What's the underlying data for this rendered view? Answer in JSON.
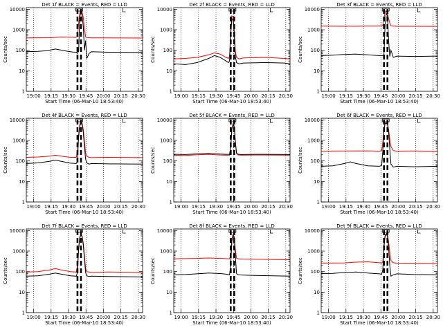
{
  "chart_data": [
    {
      "type": "line",
      "title": "Det 1f BLACK = Events, RED = LLD",
      "xlabel": "Start Time (06-Mar-10 18:53:40)",
      "ylabel": "Counts/sec",
      "xticks": [
        "19:00",
        "19:15",
        "19:30",
        "19:45",
        "20:00",
        "20:15",
        "20:30"
      ],
      "yticks": [
        "1",
        "10",
        "100",
        "1000",
        "10000"
      ],
      "xlim_minutes": [
        0,
        100
      ],
      "ylim": [
        1,
        12000
      ],
      "yscale": "log",
      "grid": "vertical dotted lines at ticks",
      "series": [
        {
          "color": "#ff0000",
          "x": [
            0,
            20,
            30,
            40,
            42,
            44,
            45,
            46,
            47,
            48,
            49,
            50,
            51,
            52,
            54,
            56,
            70,
            100
          ],
          "y": [
            400,
            410,
            440,
            430,
            420,
            460,
            2000,
            6500,
            8500,
            7500,
            4000,
            1100,
            450,
            420,
            410,
            405,
            400,
            395
          ]
        },
        {
          "color": "#000000",
          "x": [
            0,
            10,
            18,
            25,
            35,
            40,
            43,
            44,
            45,
            46,
            47,
            48,
            49,
            50,
            51,
            52,
            54,
            56,
            70,
            100
          ],
          "y": [
            85,
            88,
            95,
            115,
            90,
            82,
            80,
            70,
            90,
            4500,
            7000,
            5000,
            1500,
            100,
            300,
            40,
            70,
            85,
            80,
            78
          ]
        }
      ]
    },
    {
      "type": "line",
      "title": "Det 2f BLACK = Events, RED = LLD",
      "xlabel": "Start Time (06-Mar-10 18:53:40)",
      "ylabel": "Counts/sec",
      "xticks": [
        "19:00",
        "19:15",
        "19:30",
        "19:45",
        "20:00",
        "20:15",
        "20:30"
      ],
      "yticks": [
        "1",
        "10",
        "100",
        "1000",
        "10000"
      ],
      "xlim_minutes": [
        0,
        100
      ],
      "ylim": [
        1,
        12000
      ],
      "yscale": "log",
      "grid": "vertical dotted lines at ticks",
      "series": [
        {
          "color": "#ff0000",
          "x": [
            0,
            10,
            20,
            30,
            35,
            40,
            45,
            47,
            48,
            49,
            50,
            51,
            52,
            53,
            54,
            56,
            58,
            60,
            80,
            95,
            100
          ],
          "y": [
            38,
            40,
            45,
            60,
            75,
            65,
            45,
            40,
            50,
            900,
            4800,
            4200,
            1000,
            90,
            45,
            38,
            40,
            42,
            45,
            40,
            38
          ]
        },
        {
          "color": "#000000",
          "x": [
            0,
            10,
            20,
            30,
            35,
            40,
            45,
            47,
            48,
            49,
            50,
            51,
            52,
            53,
            54,
            56,
            60,
            80,
            95,
            100
          ],
          "y": [
            22,
            20,
            25,
            40,
            55,
            45,
            30,
            25,
            30,
            600,
            3500,
            3000,
            600,
            50,
            25,
            22,
            24,
            25,
            24,
            22
          ]
        }
      ]
    },
    {
      "type": "line",
      "title": "Det 3f BLACK = Events, RED = LLD",
      "xlabel": "Start Time (06-Mar-10 18:53:40)",
      "ylabel": "Counts/sec",
      "xticks": [
        "19:00",
        "19:15",
        "19:30",
        "19:45",
        "20:00",
        "20:15",
        "20:30"
      ],
      "yticks": [
        "1",
        "10",
        "100",
        "1000",
        "10000"
      ],
      "xlim_minutes": [
        0,
        100
      ],
      "ylim": [
        1,
        12000
      ],
      "yscale": "log",
      "grid": "vertical dotted lines at ticks",
      "series": [
        {
          "color": "#ff0000",
          "x": [
            0,
            20,
            40,
            50,
            53,
            54,
            55,
            56,
            57,
            58,
            59,
            60,
            62,
            65,
            80,
            100
          ],
          "y": [
            1500,
            1480,
            1500,
            1500,
            1600,
            3500,
            7000,
            8000,
            6000,
            3500,
            2200,
            1600,
            1500,
            1480,
            1470,
            1460
          ]
        },
        {
          "color": "#000000",
          "x": [
            0,
            10,
            20,
            30,
            40,
            50,
            53,
            54,
            55,
            56,
            57,
            58,
            59,
            60,
            62,
            65,
            80,
            100
          ],
          "y": [
            55,
            58,
            62,
            65,
            60,
            55,
            55,
            60,
            2000,
            6000,
            5000,
            300,
            50,
            100,
            45,
            52,
            50,
            52
          ]
        }
      ]
    },
    {
      "type": "line",
      "title": "Det 4f BLACK = Events, RED = LLD",
      "xlabel": "Start Time (06-Mar-10 18:53:40)",
      "ylabel": "Counts/sec",
      "xticks": [
        "19:00",
        "19:15",
        "19:30",
        "19:45",
        "20:00",
        "20:15",
        "20:30"
      ],
      "yticks": [
        "1",
        "10",
        "100",
        "1000",
        "10000"
      ],
      "xlim_minutes": [
        0,
        100
      ],
      "ylim": [
        1,
        12000
      ],
      "yscale": "log",
      "grid": "vertical dotted lines at ticks",
      "series": [
        {
          "color": "#ff0000",
          "x": [
            0,
            10,
            20,
            25,
            30,
            38,
            43,
            44,
            45,
            46,
            47,
            48,
            49,
            50,
            51,
            52,
            54,
            56,
            70,
            100
          ],
          "y": [
            150,
            155,
            170,
            190,
            170,
            150,
            150,
            300,
            2000,
            6000,
            8000,
            7000,
            3500,
            900,
            250,
            170,
            150,
            145,
            150,
            145
          ]
        },
        {
          "color": "#000000",
          "x": [
            0,
            10,
            20,
            25,
            30,
            38,
            43,
            44,
            45,
            46,
            47,
            48,
            49,
            50,
            51,
            52,
            54,
            56,
            70,
            100
          ],
          "y": [
            75,
            80,
            95,
            110,
            95,
            78,
            75,
            100,
            1500,
            5000,
            7000,
            6000,
            2500,
            500,
            120,
            80,
            70,
            75,
            72,
            70
          ]
        }
      ]
    },
    {
      "type": "line",
      "title": "Det 5f BLACK = Events, RED = LLD",
      "xlabel": "Start Time (06-Mar-10 18:53:40)",
      "ylabel": "Counts/sec",
      "xticks": [
        "19:00",
        "19:15",
        "19:30",
        "19:45",
        "20:00",
        "20:15",
        "20:30"
      ],
      "yticks": [
        "1",
        "10",
        "100",
        "1000",
        "10000"
      ],
      "xlim_minutes": [
        0,
        100
      ],
      "ylim": [
        1,
        12000
      ],
      "yscale": "log",
      "grid": "vertical dotted lines at ticks",
      "series": [
        {
          "color": "#ff0000",
          "x": [
            0,
            10,
            20,
            30,
            40,
            45,
            48,
            49,
            50,
            51,
            52,
            53,
            54,
            55,
            56,
            58,
            70,
            100
          ],
          "y": [
            190,
            185,
            200,
            210,
            195,
            190,
            190,
            500,
            4000,
            6500,
            5000,
            1000,
            250,
            200,
            195,
            190,
            195,
            190
          ]
        },
        {
          "color": "#000000",
          "x": [
            0,
            10,
            20,
            30,
            40,
            45,
            48,
            49,
            50,
            51,
            52,
            53,
            54,
            55,
            56,
            58,
            70,
            100
          ],
          "y": [
            210,
            205,
            220,
            230,
            215,
            210,
            210,
            450,
            3500,
            6000,
            4500,
            800,
            230,
            215,
            210,
            205,
            210,
            205
          ]
        }
      ]
    },
    {
      "type": "line",
      "title": "Det 6f BLACK = Events, RED = LLD",
      "xlabel": "Start Time (06-Mar-10 18:53:40)",
      "ylabel": "Counts/sec",
      "xticks": [
        "19:00",
        "19:15",
        "19:30",
        "19:45",
        "20:00",
        "20:15",
        "20:30"
      ],
      "yticks": [
        "1",
        "10",
        "100",
        "1000",
        "10000"
      ],
      "xlim_minutes": [
        0,
        100
      ],
      "ylim": [
        1,
        12000
      ],
      "yscale": "log",
      "grid": "vertical dotted lines at ticks",
      "series": [
        {
          "color": "#ff0000",
          "x": [
            0,
            20,
            40,
            50,
            52,
            53,
            54,
            55,
            56,
            57,
            58,
            59,
            60,
            62,
            65,
            80,
            100
          ],
          "y": [
            300,
            305,
            310,
            300,
            320,
            800,
            4000,
            7000,
            8000,
            7000,
            3500,
            1200,
            500,
            320,
            300,
            305,
            295
          ]
        },
        {
          "color": "#000000",
          "x": [
            0,
            10,
            20,
            25,
            30,
            40,
            50,
            52,
            53,
            54,
            55,
            56,
            57,
            58,
            59,
            60,
            62,
            65,
            80,
            100
          ],
          "y": [
            55,
            58,
            75,
            90,
            75,
            58,
            55,
            60,
            300,
            3500,
            6500,
            7000,
            6000,
            2500,
            400,
            70,
            50,
            55,
            52,
            55
          ]
        }
      ]
    },
    {
      "type": "line",
      "title": "Det 7f BLACK = Events, RED = LLD",
      "xlabel": "Start Time (06-Mar-10 18:53:40)",
      "ylabel": "Counts/sec",
      "xticks": [
        "19:00",
        "19:15",
        "19:30",
        "19:45",
        "20:00",
        "20:15",
        "20:30"
      ],
      "yticks": [
        "1",
        "10",
        "100",
        "1000",
        "10000"
      ],
      "xlim_minutes": [
        0,
        100
      ],
      "ylim": [
        1,
        12000
      ],
      "yscale": "log",
      "grid": "vertical dotted lines at ticks",
      "series": [
        {
          "color": "#ff0000",
          "x": [
            0,
            10,
            20,
            25,
            30,
            38,
            43,
            44,
            45,
            46,
            47,
            48,
            49,
            50,
            51,
            52,
            54,
            56,
            70,
            100
          ],
          "y": [
            95,
            100,
            120,
            140,
            120,
            100,
            95,
            200,
            1500,
            5000,
            6500,
            5500,
            2500,
            600,
            140,
            100,
            95,
            90,
            95,
            90
          ]
        },
        {
          "color": "#000000",
          "x": [
            0,
            10,
            20,
            25,
            30,
            38,
            43,
            44,
            45,
            46,
            47,
            48,
            49,
            50,
            51,
            52,
            54,
            56,
            70,
            100
          ],
          "y": [
            60,
            62,
            75,
            85,
            75,
            62,
            60,
            90,
            1200,
            4500,
            6000,
            5000,
            2000,
            400,
            90,
            62,
            58,
            60,
            58,
            55
          ]
        }
      ]
    },
    {
      "type": "line",
      "title": "Det 8f BLACK = Events, RED = LLD",
      "xlabel": "Start Time (06-Mar-10 18:53:40)",
      "ylabel": "Counts/sec",
      "xticks": [
        "19:00",
        "19:15",
        "19:30",
        "19:45",
        "20:00",
        "20:15",
        "20:30"
      ],
      "yticks": [
        "1",
        "10",
        "100",
        "1000",
        "10000"
      ],
      "xlim_minutes": [
        0,
        100
      ],
      "ylim": [
        1,
        12000
      ],
      "yscale": "log",
      "grid": "vertical dotted lines at ticks",
      "series": [
        {
          "color": "#ff0000",
          "x": [
            0,
            10,
            20,
            30,
            40,
            45,
            48,
            49,
            50,
            51,
            52,
            53,
            54,
            55,
            56,
            58,
            70,
            100
          ],
          "y": [
            420,
            430,
            440,
            460,
            440,
            430,
            420,
            700,
            4000,
            6500,
            5000,
            1200,
            450,
            430,
            420,
            410,
            400,
            380
          ]
        },
        {
          "color": "#000000",
          "x": [
            0,
            10,
            20,
            30,
            40,
            45,
            48,
            49,
            50,
            51,
            52,
            53,
            54,
            55,
            56,
            58,
            70,
            100
          ],
          "y": [
            70,
            72,
            78,
            85,
            80,
            75,
            70,
            200,
            3000,
            6000,
            4500,
            600,
            80,
            72,
            70,
            68,
            65,
            60
          ]
        }
      ]
    },
    {
      "type": "line",
      "title": "Det 9f BLACK = Events, RED = LLD",
      "xlabel": "Start Time (06-Mar-10 18:53:40)",
      "ylabel": "Counts/sec",
      "xticks": [
        "19:00",
        "19:15",
        "19:30",
        "19:45",
        "20:00",
        "20:15",
        "20:30"
      ],
      "yticks": [
        "1",
        "10",
        "100",
        "1000",
        "10000"
      ],
      "xlim_minutes": [
        0,
        100
      ],
      "ylim": [
        1,
        12000
      ],
      "yscale": "log",
      "grid": "vertical dotted lines at ticks",
      "series": [
        {
          "color": "#ff0000",
          "x": [
            0,
            20,
            30,
            40,
            50,
            52,
            53,
            54,
            55,
            56,
            57,
            58,
            59,
            60,
            62,
            65,
            80,
            100
          ],
          "y": [
            260,
            265,
            290,
            300,
            270,
            260,
            300,
            1500,
            5000,
            7000,
            6000,
            3000,
            900,
            350,
            270,
            260,
            255,
            250
          ]
        },
        {
          "color": "#000000",
          "x": [
            0,
            10,
            20,
            30,
            40,
            50,
            52,
            53,
            54,
            55,
            56,
            57,
            58,
            59,
            60,
            62,
            65,
            80,
            100
          ],
          "y": [
            80,
            82,
            90,
            95,
            85,
            78,
            75,
            120,
            2000,
            6000,
            7000,
            5000,
            1500,
            200,
            60,
            70,
            78,
            72,
            70
          ]
        }
      ]
    }
  ]
}
